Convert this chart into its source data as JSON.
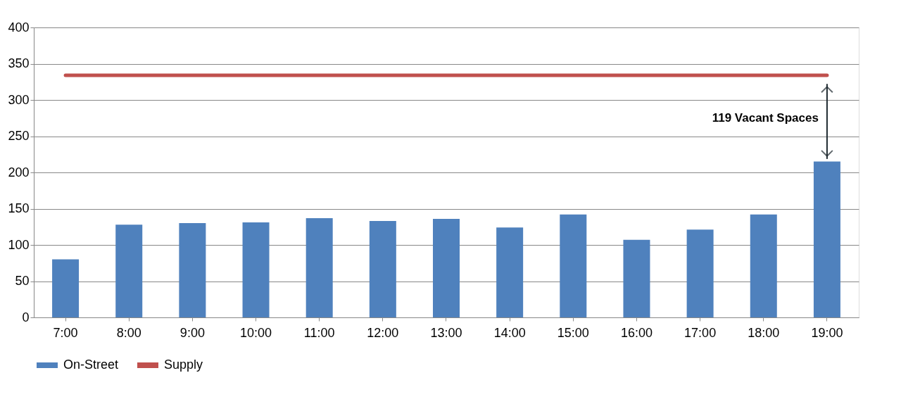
{
  "chart_data": {
    "type": "bar",
    "categories": [
      "7:00",
      "8:00",
      "9:00",
      "10:00",
      "11:00",
      "12:00",
      "13:00",
      "14:00",
      "15:00",
      "16:00",
      "17:00",
      "18:00",
      "19:00"
    ],
    "series": [
      {
        "name": "On-Street",
        "color": "#4f81bd",
        "values": [
          80,
          128,
          130,
          131,
          137,
          133,
          136,
          124,
          142,
          107,
          121,
          142,
          215
        ]
      },
      {
        "name": "Supply",
        "type": "line",
        "color": "#c0504d",
        "values": [
          334,
          334,
          334,
          334,
          334,
          334,
          334,
          334,
          334,
          334,
          334,
          334,
          334
        ]
      }
    ],
    "ylim": [
      0,
      400
    ],
    "yticks": [
      0,
      50,
      100,
      150,
      200,
      250,
      300,
      350,
      400
    ],
    "grid": "y",
    "legend": "bottom",
    "marker": "none",
    "line_style": "solid",
    "annotations": [
      "119 Vacant Spaces"
    ]
  }
}
